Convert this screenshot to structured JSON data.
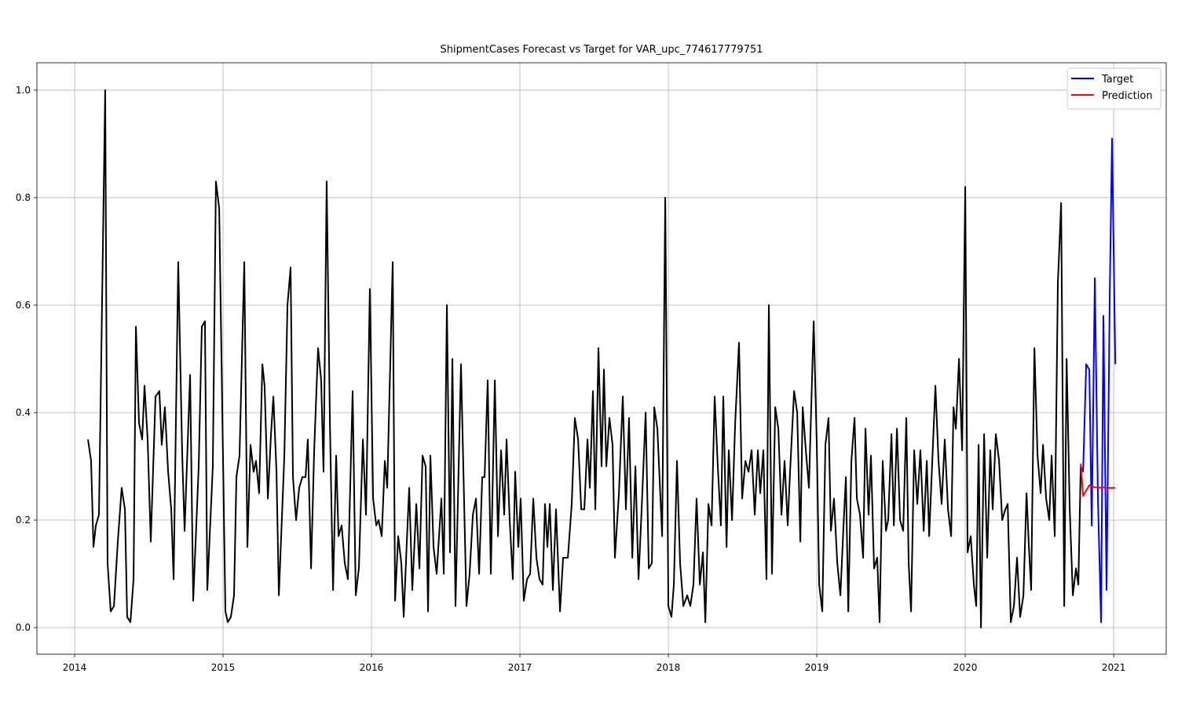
{
  "chart_data": {
    "type": "line",
    "title": "ShipmentCases Forecast vs Target for VAR_upc_774617779751",
    "xlim": [
      2013.746,
      2021.354
    ],
    "xticks": [
      2014,
      2015,
      2016,
      2017,
      2018,
      2019,
      2020,
      2021
    ],
    "ylim": [
      -0.0496,
      1.051
    ],
    "yticks": [
      {
        "value": 0,
        "label": "0.0"
      },
      0.2,
      0.4,
      0.6,
      0.8,
      {
        "value": 1,
        "label": "1.0"
      }
    ],
    "grid": true,
    "legend": "upper right",
    "series": [
      {
        "color": "#000000",
        "x": [
          2014.09,
          2014.111,
          2014.127,
          2014.143,
          2014.164,
          2014.206,
          2014.222,
          2014.243,
          2014.265,
          2014.291,
          2014.317,
          2014.339,
          2014.354,
          2014.376,
          2014.397,
          2014.413,
          2014.434,
          2014.455,
          2014.471,
          2014.492,
          2014.513,
          2014.545,
          2014.571,
          2014.587,
          2014.608,
          2014.63,
          2014.651,
          2014.667,
          2014.698,
          2014.725,
          2014.741,
          2014.778,
          2014.799,
          2014.836,
          2014.857,
          2014.878,
          2014.894,
          2014.931,
          2014.952,
          2014.974,
          2014.995,
          2015.016,
          2015.032,
          2015.053,
          2015.074,
          2015.09,
          2015.111,
          2015.143,
          2015.164,
          2015.185,
          2015.206,
          2015.222,
          2015.243,
          2015.265,
          2015.28,
          2015.302,
          2015.323,
          2015.339,
          2015.36,
          2015.376,
          2015.413,
          2015.434,
          2015.455,
          2015.471,
          2015.492,
          2015.513,
          2015.534,
          2015.556,
          2015.571,
          2015.593,
          2015.614,
          2015.64,
          2015.661,
          2015.677,
          2015.698,
          2015.72,
          2015.741,
          2015.762,
          2015.778,
          2015.799,
          2015.82,
          2015.841,
          2015.873,
          2015.894,
          2015.915,
          2015.942,
          2015.963,
          2015.989,
          2016.011,
          2016.032,
          2016.048,
          2016.069,
          2016.09,
          2016.106,
          2016.143,
          2016.159,
          2016.18,
          2016.201,
          2016.217,
          2016.238,
          2016.254,
          2016.275,
          2016.302,
          2016.323,
          2016.344,
          2016.365,
          2016.381,
          2016.397,
          2016.418,
          2016.439,
          2016.471,
          2016.487,
          2016.508,
          2016.529,
          2016.545,
          2016.566,
          2016.603,
          2016.64,
          2016.661,
          2016.683,
          2016.704,
          2016.725,
          2016.746,
          2016.762,
          2016.783,
          2016.804,
          2016.831,
          2016.852,
          2016.873,
          2016.894,
          2016.91,
          2016.931,
          2016.952,
          2016.968,
          2016.989,
          2017.005,
          2017.026,
          2017.048,
          2017.069,
          2017.09,
          2017.111,
          2017.132,
          2017.153,
          2017.169,
          2017.185,
          2017.201,
          2017.222,
          2017.243,
          2017.27,
          2017.291,
          2017.323,
          2017.349,
          2017.37,
          2017.392,
          2017.413,
          2017.434,
          2017.455,
          2017.471,
          2017.492,
          2017.508,
          2017.529,
          2017.55,
          2017.566,
          2017.582,
          2017.603,
          2017.624,
          2017.64,
          2017.667,
          2017.693,
          2017.714,
          2017.735,
          2017.757,
          2017.778,
          2017.799,
          2017.82,
          2017.847,
          2017.868,
          2017.889,
          2017.905,
          2017.926,
          2017.958,
          2017.979,
          2018.0,
          2018.021,
          2018.037,
          2018.058,
          2018.079,
          2018.101,
          2018.127,
          2018.148,
          2018.169,
          2018.19,
          2018.212,
          2018.233,
          2018.249,
          2018.27,
          2018.291,
          2018.312,
          2018.333,
          2018.354,
          2018.37,
          2018.392,
          2018.407,
          2018.429,
          2018.45,
          2018.476,
          2018.497,
          2018.519,
          2018.54,
          2018.561,
          2018.582,
          2018.603,
          2018.619,
          2018.64,
          2018.661,
          2018.677,
          2018.698,
          2018.72,
          2018.741,
          2018.762,
          2018.783,
          2018.804,
          2018.82,
          2018.847,
          2018.868,
          2018.889,
          2018.905,
          2018.926,
          2018.947,
          2018.979,
          2019.0,
          2019.016,
          2019.037,
          2019.058,
          2019.079,
          2019.095,
          2019.116,
          2019.138,
          2019.159,
          2019.18,
          2019.196,
          2019.212,
          2019.233,
          2019.254,
          2019.27,
          2019.291,
          2019.312,
          2019.328,
          2019.349,
          2019.365,
          2019.386,
          2019.407,
          2019.423,
          2019.444,
          2019.466,
          2019.481,
          2019.503,
          2019.519,
          2019.54,
          2019.561,
          2019.582,
          2019.603,
          2019.619,
          2019.635,
          2019.656,
          2019.677,
          2019.698,
          2019.72,
          2019.741,
          2019.757,
          2019.778,
          2019.799,
          2019.82,
          2019.841,
          2019.862,
          2019.884,
          2019.905,
          2019.921,
          2019.937,
          2019.958,
          2019.979,
          2020.0,
          2020.016,
          2020.037,
          2020.058,
          2020.074,
          2020.09,
          2020.106,
          2020.127,
          2020.148,
          2020.169,
          2020.185,
          2020.206,
          2020.228,
          2020.249,
          2020.27,
          2020.286,
          2020.307,
          2020.328,
          2020.349,
          2020.37,
          2020.392,
          2020.413,
          2020.429,
          2020.444,
          2020.466,
          2020.487,
          2020.508,
          2020.524,
          2020.545,
          2020.566,
          2020.582,
          2020.603,
          2020.624,
          2020.646,
          2020.667,
          2020.683,
          2020.704,
          2020.725,
          2020.746,
          2020.762,
          2020.778
        ],
        "values": [
          0.35,
          0.31,
          0.15,
          0.19,
          0.21,
          1.0,
          0.12,
          0.03,
          0.04,
          0.16,
          0.26,
          0.22,
          0.02,
          0.01,
          0.09,
          0.56,
          0.38,
          0.35,
          0.45,
          0.35,
          0.16,
          0.43,
          0.44,
          0.34,
          0.41,
          0.29,
          0.22,
          0.09,
          0.68,
          0.32,
          0.18,
          0.47,
          0.05,
          0.3,
          0.56,
          0.57,
          0.07,
          0.3,
          0.83,
          0.78,
          0.4,
          0.03,
          0.01,
          0.02,
          0.06,
          0.28,
          0.32,
          0.68,
          0.15,
          0.34,
          0.29,
          0.31,
          0.25,
          0.49,
          0.45,
          0.24,
          0.36,
          0.43,
          0.29,
          0.06,
          0.32,
          0.6,
          0.67,
          0.28,
          0.2,
          0.26,
          0.28,
          0.28,
          0.35,
          0.11,
          0.33,
          0.52,
          0.46,
          0.29,
          0.83,
          0.38,
          0.07,
          0.32,
          0.17,
          0.19,
          0.12,
          0.09,
          0.44,
          0.06,
          0.11,
          0.35,
          0.21,
          0.63,
          0.24,
          0.19,
          0.2,
          0.17,
          0.31,
          0.26,
          0.68,
          0.05,
          0.17,
          0.12,
          0.02,
          0.16,
          0.26,
          0.07,
          0.23,
          0.11,
          0.32,
          0.3,
          0.03,
          0.32,
          0.15,
          0.1,
          0.24,
          0.1,
          0.6,
          0.14,
          0.5,
          0.04,
          0.49,
          0.04,
          0.1,
          0.21,
          0.24,
          0.1,
          0.28,
          0.28,
          0.46,
          0.1,
          0.46,
          0.17,
          0.33,
          0.21,
          0.35,
          0.2,
          0.09,
          0.29,
          0.15,
          0.24,
          0.05,
          0.09,
          0.1,
          0.24,
          0.13,
          0.09,
          0.08,
          0.23,
          0.15,
          0.23,
          0.07,
          0.22,
          0.03,
          0.13,
          0.13,
          0.23,
          0.39,
          0.35,
          0.22,
          0.22,
          0.35,
          0.26,
          0.44,
          0.22,
          0.52,
          0.3,
          0.48,
          0.3,
          0.39,
          0.34,
          0.13,
          0.25,
          0.43,
          0.22,
          0.39,
          0.13,
          0.3,
          0.09,
          0.22,
          0.4,
          0.11,
          0.12,
          0.41,
          0.37,
          0.17,
          0.8,
          0.04,
          0.02,
          0.08,
          0.31,
          0.12,
          0.04,
          0.06,
          0.04,
          0.08,
          0.24,
          0.08,
          0.14,
          0.01,
          0.23,
          0.19,
          0.43,
          0.3,
          0.19,
          0.43,
          0.15,
          0.33,
          0.2,
          0.38,
          0.53,
          0.24,
          0.31,
          0.29,
          0.33,
          0.21,
          0.33,
          0.25,
          0.33,
          0.09,
          0.6,
          0.1,
          0.41,
          0.37,
          0.21,
          0.31,
          0.19,
          0.29,
          0.44,
          0.4,
          0.16,
          0.41,
          0.33,
          0.26,
          0.57,
          0.34,
          0.08,
          0.03,
          0.34,
          0.39,
          0.18,
          0.24,
          0.12,
          0.06,
          0.19,
          0.28,
          0.03,
          0.31,
          0.39,
          0.24,
          0.21,
          0.13,
          0.37,
          0.21,
          0.32,
          0.11,
          0.13,
          0.01,
          0.31,
          0.18,
          0.2,
          0.36,
          0.19,
          0.37,
          0.2,
          0.18,
          0.39,
          0.12,
          0.03,
          0.33,
          0.23,
          0.33,
          0.18,
          0.31,
          0.17,
          0.31,
          0.45,
          0.31,
          0.23,
          0.35,
          0.22,
          0.17,
          0.41,
          0.37,
          0.5,
          0.33,
          0.82,
          0.14,
          0.17,
          0.08,
          0.04,
          0.34,
          0.0,
          0.36,
          0.13,
          0.33,
          0.22,
          0.36,
          0.31,
          0.2,
          0.22,
          0.23,
          0.01,
          0.04,
          0.13,
          0.02,
          0.06,
          0.25,
          0.15,
          0.07,
          0.52,
          0.32,
          0.25,
          0.34,
          0.24,
          0.2,
          0.32,
          0.17,
          0.64,
          0.79,
          0.04,
          0.5,
          0.22,
          0.06,
          0.11,
          0.08,
          0.3
        ]
      },
      {
        "name": "Target",
        "color": "#0000ff",
        "x": [
          2020.778,
          2020.794,
          2020.815,
          2020.836,
          2020.852,
          2020.873,
          2020.894,
          2020.915,
          2020.931,
          2020.952,
          2020.974,
          2020.989,
          2021.011
        ],
        "values": [
          0.3,
          0.29,
          0.49,
          0.48,
          0.19,
          0.65,
          0.24,
          0.01,
          0.58,
          0.07,
          0.63,
          0.91,
          0.49
        ]
      },
      {
        "name": "Prediction",
        "color": "#ff0000",
        "x": [
          2020.778,
          2020.794,
          2020.815,
          2020.836,
          2020.852,
          2020.873,
          2020.894,
          2020.915,
          2020.931,
          2020.952,
          2020.974,
          2021.011
        ],
        "values": [
          0.305,
          0.245,
          0.255,
          0.265,
          0.263,
          0.261,
          0.261,
          0.26,
          0.261,
          0.26,
          0.26,
          0.26
        ]
      }
    ]
  }
}
